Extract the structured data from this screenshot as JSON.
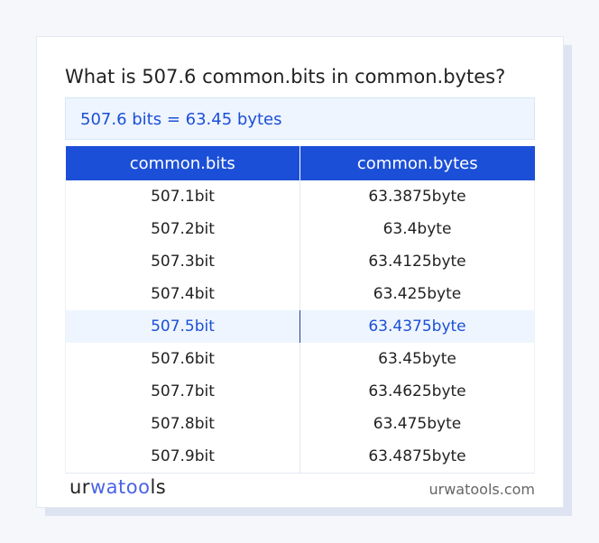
{
  "title": "What is 507.6 common.bits in common.bytes?",
  "result": "507.6 bits = 63.45 bytes",
  "table": {
    "headers": [
      "common.bits",
      "common.bytes"
    ],
    "rows": [
      [
        "507.1bit",
        "63.3875byte"
      ],
      [
        "507.2bit",
        "63.4byte"
      ],
      [
        "507.3bit",
        "63.4125byte"
      ],
      [
        "507.4bit",
        "63.425byte"
      ],
      [
        "507.5bit",
        "63.4375byte"
      ],
      [
        "507.6bit",
        "63.45byte"
      ],
      [
        "507.7bit",
        "63.4625byte"
      ],
      [
        "507.8bit",
        "63.475byte"
      ],
      [
        "507.9bit",
        "63.4875byte"
      ]
    ],
    "highlighted_row": 4
  },
  "footer": {
    "logo": "urwatools",
    "logo_parts": [
      "ur",
      "wat",
      "oo",
      "ls"
    ],
    "site": "urwatools.com"
  },
  "colors": {
    "accent": "#1c4fd8",
    "highlight_bg": "#eef5fe"
  }
}
